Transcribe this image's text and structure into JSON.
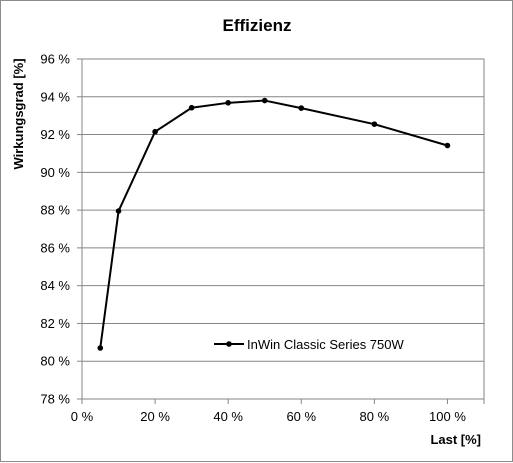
{
  "chart_data": {
    "type": "line",
    "title": "Effizienz",
    "xlabel": "Last [%]",
    "ylabel": "Wirkungsgrad [%]",
    "xlim": [
      0,
      110
    ],
    "ylim": [
      78,
      96
    ],
    "x_ticks": [
      "0 %",
      "20 %",
      "40 %",
      "60 %",
      "80 %",
      "100 %"
    ],
    "x_tick_values": [
      0,
      20,
      40,
      60,
      80,
      100
    ],
    "y_ticks": [
      "78 %",
      "80 %",
      "82 %",
      "84 %",
      "86 %",
      "88 %",
      "90 %",
      "92 %",
      "94 %",
      "96 %"
    ],
    "y_tick_values": [
      78,
      80,
      82,
      84,
      86,
      88,
      90,
      92,
      94,
      96
    ],
    "grid": {
      "horizontal": true,
      "vertical": false
    },
    "legend_position": "lower-center",
    "colors": {
      "series": "#000000",
      "grid": "#868686",
      "axis": "#868686"
    },
    "series": [
      {
        "name": "InWin Classic Series 750W",
        "x": [
          5,
          10,
          20,
          30,
          40,
          50,
          60,
          80,
          100
        ],
        "values": [
          80.7,
          87.95,
          92.15,
          93.42,
          93.68,
          93.8,
          93.4,
          92.55,
          91.42
        ]
      }
    ]
  }
}
